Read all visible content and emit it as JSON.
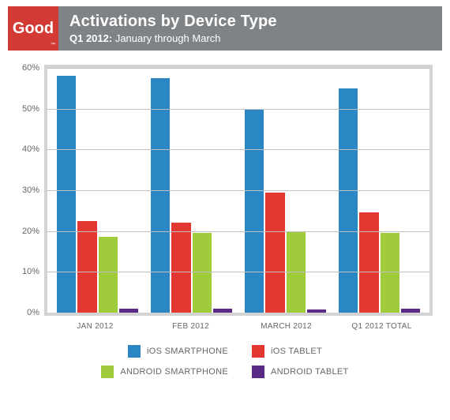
{
  "logo": {
    "text": "Good",
    "bg": "#d33a33"
  },
  "header": {
    "title": "Activations by Device Type",
    "subtitle_bold": "Q1 2012:",
    "subtitle_rest": " January through March",
    "bg": "#808386"
  },
  "chart": {
    "type": "bar",
    "ylim": [
      0,
      60
    ],
    "ytick_step": 10,
    "ytick_suffix": "%",
    "plot_border_color": "#d3d3d3",
    "plot_border_width": 4,
    "grid_color": "#c0c0c0",
    "background_color": "#ffffff",
    "label_color": "#666666",
    "label_fontsize": 11,
    "categories": [
      "JAN 2012",
      "FEB 2012",
      "MARCH 2012",
      "Q1 2012 TOTAL"
    ],
    "series": [
      {
        "name": "iOS SMARTPHONE",
        "color": "#2b86c4",
        "values": [
          58.0,
          57.5,
          50.0,
          55.0
        ]
      },
      {
        "name": "iOS TABLET",
        "color": "#e33731",
        "values": [
          22.5,
          22.0,
          29.5,
          24.5
        ]
      },
      {
        "name": "ANDROID SMARTPHONE",
        "color": "#a0cb3a",
        "values": [
          18.5,
          19.5,
          20.0,
          19.5
        ]
      },
      {
        "name": "ANDROID TABLET",
        "color": "#5a2a84",
        "values": [
          1.0,
          1.0,
          0.8,
          1.0
        ]
      }
    ]
  },
  "legend": {
    "rows": [
      [
        0,
        1
      ],
      [
        2,
        3
      ]
    ]
  }
}
